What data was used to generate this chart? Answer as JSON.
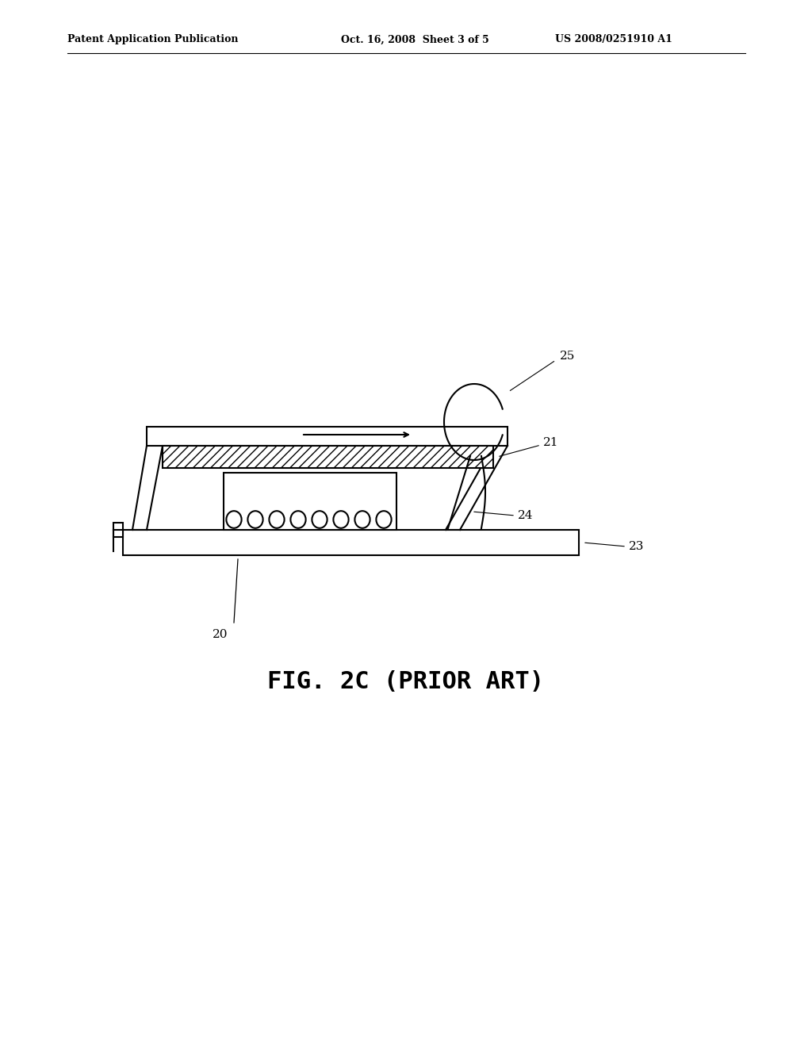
{
  "background_color": "#ffffff",
  "header_left": "Patent Application Publication",
  "header_center": "Oct. 16, 2008  Sheet 3 of 5",
  "header_right": "US 2008/0251910 A1",
  "figure_label": "FIG. 2C (PRIOR ART)",
  "line_color": "#000000"
}
